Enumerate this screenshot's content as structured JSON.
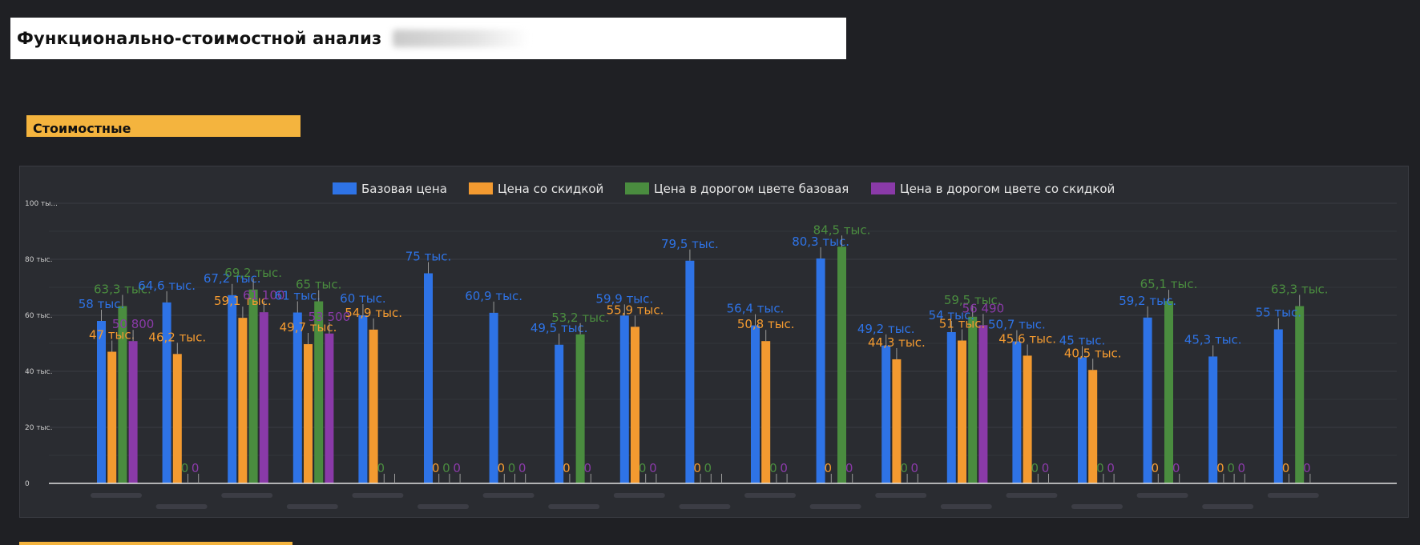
{
  "header": {
    "title": "Функционально-стоимостной анализ"
  },
  "section": {
    "label": "Стоимостные"
  },
  "chart_data": {
    "type": "bar",
    "categories": [
      "",
      "",
      "",
      "",
      "",
      "",
      "",
      "",
      "",
      "",
      "",
      "",
      "",
      "",
      "",
      "",
      "",
      "",
      ""
    ],
    "yticks": [
      "0",
      "20 тыс.",
      "40 тыс.",
      "60 тыс.",
      "80 тыс.",
      "100 ты..."
    ],
    "ylim": [
      0,
      100
    ],
    "legend_position": "top-center",
    "grid": true,
    "series": [
      {
        "name": "Базовая цена",
        "color": "#2e73e6",
        "values": [
          58,
          64.6,
          67.2,
          61,
          60,
          75,
          60.9,
          49.5,
          59.9,
          79.5,
          56.4,
          80.3,
          49.2,
          54,
          50.7,
          45,
          59.2,
          45.3,
          55
        ],
        "labels": [
          "58 тыс.",
          "64,6 тыс.",
          "67,2 тыс.",
          "61 тыс.",
          "60 тыс.",
          "75 тыс.",
          "60,9 тыс.",
          "49,5 тыс.",
          "59,9 тыс.",
          "79,5 тыс.",
          "56,4 тыс.",
          "80,3 тыс.",
          "49,2 тыс.",
          "54 тыс.",
          "50,7 тыс.",
          "45 тыс.",
          "59,2 тыс.",
          "45,3 тыс.",
          "55 тыс."
        ]
      },
      {
        "name": "Цена со скидкой",
        "color": "#f39a30",
        "values": [
          47,
          46.2,
          59.1,
          49.7,
          54.9,
          0,
          0,
          0,
          55.9,
          0,
          50.8,
          0,
          44.3,
          51,
          45.6,
          40.5,
          0,
          0,
          0
        ],
        "labels": [
          "47 тыс.",
          "46,2 тыс.",
          "59,1 тыс.",
          "49,7 тыс.",
          "54,9 тыс.",
          "0",
          "0",
          "0",
          "55,9 тыс.",
          "0",
          "50,8 тыс.",
          "0",
          "44,3 тыс.",
          "51 тыс.",
          "45,6 тыс.",
          "40,5 тыс.",
          "0",
          "0",
          "0"
        ]
      },
      {
        "name": "Цена в дорогом цвете базовая",
        "color": "#4a8c3f",
        "values": [
          63.3,
          0,
          69.2,
          65,
          0,
          0,
          0,
          53.2,
          0,
          0,
          0,
          84.5,
          0,
          59.5,
          0,
          0,
          65.1,
          0,
          63.3
        ],
        "labels": [
          "63,3 тыс.",
          "0",
          "69,2 тыс.",
          "65 тыс.",
          "0",
          "0",
          "0",
          "53,2 тыс.",
          "0",
          "0",
          "0",
          "84,5 тыс.",
          "0",
          "59,5 тыс.",
          "0",
          "0",
          "65,1 тыс.",
          "0",
          "63,3 тыс."
        ]
      },
      {
        "name": "Цена в дорогом цвете со скидкой",
        "color": "#8a3aa8",
        "values": [
          50.8,
          0,
          61.1,
          53.5,
          0,
          0,
          0,
          0,
          0,
          0,
          0,
          0,
          0,
          56.49,
          0,
          0,
          0,
          0,
          0
        ],
        "labels": [
          "50 800",
          "0",
          "61 100",
          "53 500",
          "",
          "0",
          "0",
          "0",
          "0",
          "",
          "0",
          "0",
          "0",
          "56 490",
          "0",
          "0",
          "0",
          "0",
          "0"
        ]
      }
    ]
  }
}
